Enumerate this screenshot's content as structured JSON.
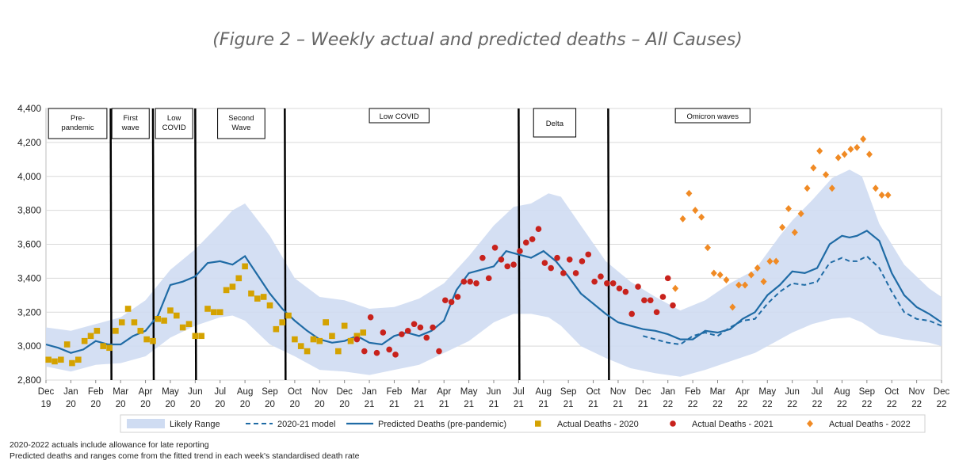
{
  "caption": "(Figure 2 – Weekly actual and predicted deaths – All Causes)",
  "footnotes": [
    "2020-2022 actuals include allowance for late reporting",
    "Predicted deaths and ranges come from the fitted trend in each week's standardised death rate"
  ],
  "colors": {
    "range": "#cfdcf2",
    "model": "#1f6ba5",
    "actual_2020": "#d4a200",
    "actual_2021": "#c8221c",
    "actual_2022": "#f08a24"
  },
  "chart_data": {
    "type": "line",
    "title": "",
    "ylim": [
      2800,
      4400
    ],
    "yticks": [
      2800,
      3000,
      3200,
      3400,
      3600,
      3800,
      4000,
      4200,
      4400
    ],
    "ytick_labels": [
      "2,800",
      "3,000",
      "3,200",
      "3,400",
      "3,600",
      "3,800",
      "4,000",
      "4,200",
      "4,400"
    ],
    "xlim": [
      0,
      36
    ],
    "x_unit": "months since Dec 2019",
    "xticks": [
      {
        "m": "Dec",
        "y": "19"
      },
      {
        "m": "Jan",
        "y": "20"
      },
      {
        "m": "Feb",
        "y": "20"
      },
      {
        "m": "Mar",
        "y": "20"
      },
      {
        "m": "Apr",
        "y": "20"
      },
      {
        "m": "May",
        "y": "20"
      },
      {
        "m": "Jun",
        "y": "20"
      },
      {
        "m": "Jul",
        "y": "20"
      },
      {
        "m": "Aug",
        "y": "20"
      },
      {
        "m": "Sep",
        "y": "20"
      },
      {
        "m": "Oct",
        "y": "20"
      },
      {
        "m": "Nov",
        "y": "20"
      },
      {
        "m": "Dec",
        "y": "20"
      },
      {
        "m": "Jan",
        "y": "21"
      },
      {
        "m": "Feb",
        "y": "21"
      },
      {
        "m": "Mar",
        "y": "21"
      },
      {
        "m": "Apr",
        "y": "21"
      },
      {
        "m": "May",
        "y": "21"
      },
      {
        "m": "Jun",
        "y": "21"
      },
      {
        "m": "Jul",
        "y": "21"
      },
      {
        "m": "Aug",
        "y": "21"
      },
      {
        "m": "Sep",
        "y": "21"
      },
      {
        "m": "Oct",
        "y": "21"
      },
      {
        "m": "Nov",
        "y": "21"
      },
      {
        "m": "Dec",
        "y": "21"
      },
      {
        "m": "Jan",
        "y": "22"
      },
      {
        "m": "Feb",
        "y": "22"
      },
      {
        "m": "Mar",
        "y": "22"
      },
      {
        "m": "Apr",
        "y": "22"
      },
      {
        "m": "May",
        "y": "22"
      },
      {
        "m": "Jun",
        "y": "22"
      },
      {
        "m": "Jul",
        "y": "22"
      },
      {
        "m": "Aug",
        "y": "22"
      },
      {
        "m": "Sep",
        "y": "22"
      },
      {
        "m": "Oct",
        "y": "22"
      },
      {
        "m": "Nov",
        "y": "22"
      },
      {
        "m": "Dec",
        "y": "22"
      }
    ],
    "grid": "horizontal",
    "legend_position": "bottom",
    "period_dividers": [
      2.6,
      4.3,
      6.0,
      9.6,
      19.0,
      22.6
    ],
    "periods": [
      {
        "label": [
          "Pre-",
          "pandemic"
        ],
        "from": 0.1,
        "to": 2.45
      },
      {
        "label": [
          "First",
          "wave"
        ],
        "from": 2.65,
        "to": 4.15
      },
      {
        "label": [
          "Low",
          "COVID"
        ],
        "from": 4.4,
        "to": 5.9
      },
      {
        "label": [
          "Second",
          "Wave"
        ],
        "from": 6.9,
        "to": 8.8
      },
      {
        "label": [
          "Low COVID"
        ],
        "from": 13.0,
        "to": 15.4
      },
      {
        "label": [
          "Delta"
        ],
        "from": 19.6,
        "to": 21.3
      },
      {
        "label": [
          "Omicron waves"
        ],
        "from": 25.3,
        "to": 28.3
      }
    ],
    "legend": [
      {
        "key": "range",
        "label": "Likely Range"
      },
      {
        "key": "model_2021",
        "label": "2020-21 model"
      },
      {
        "key": "predicted",
        "label": "Predicted Deaths (pre-pandemic)"
      },
      {
        "key": "actual_2020",
        "label": "Actual Deaths - 2020"
      },
      {
        "key": "actual_2021",
        "label": "Actual Deaths - 2021"
      },
      {
        "key": "actual_2022",
        "label": "Actual Deaths - 2022"
      }
    ],
    "series": [
      {
        "key": "range",
        "x": [
          0,
          1,
          2,
          3,
          4,
          5,
          6,
          7,
          7.5,
          8,
          9,
          10,
          11,
          12,
          13,
          14,
          15,
          16,
          17,
          18,
          18.8,
          19.5,
          20.2,
          20.7,
          21.5,
          22.5,
          23.5,
          24.5,
          25.5,
          26.5,
          27.5,
          28.5,
          29.5,
          30,
          30.8,
          31.6,
          32.3,
          32.8,
          33.5,
          34.5,
          35.5,
          36
        ],
        "upper": [
          3110,
          3090,
          3130,
          3170,
          3270,
          3450,
          3570,
          3720,
          3800,
          3840,
          3650,
          3400,
          3290,
          3270,
          3220,
          3230,
          3280,
          3370,
          3530,
          3710,
          3820,
          3840,
          3900,
          3880,
          3710,
          3500,
          3380,
          3290,
          3210,
          3270,
          3370,
          3450,
          3650,
          3740,
          3860,
          3990,
          4040,
          4000,
          3720,
          3480,
          3340,
          3290
        ],
        "lower": [
          2880,
          2850,
          2890,
          2900,
          2940,
          3050,
          3120,
          3170,
          3180,
          3150,
          3010,
          2940,
          2860,
          2850,
          2830,
          2860,
          2890,
          2960,
          3030,
          3140,
          3190,
          3190,
          3170,
          3120,
          3000,
          2930,
          2870,
          2840,
          2820,
          2860,
          2910,
          2960,
          3040,
          3080,
          3130,
          3160,
          3170,
          3140,
          3070,
          3040,
          3020,
          3000
        ]
      },
      {
        "key": "predicted",
        "name": "Predicted Deaths (pre-pandemic)",
        "x": [
          0,
          0.5,
          1,
          1.5,
          2,
          2.5,
          3,
          3.5,
          4,
          4.5,
          5,
          5.5,
          6,
          6.5,
          7,
          7.5,
          8,
          8.5,
          9,
          9.5,
          10,
          10.5,
          11,
          11.5,
          12,
          12.5,
          13,
          13.5,
          14,
          14.5,
          15,
          15.5,
          16,
          16.5,
          17,
          17.5,
          18,
          18.5,
          19,
          19.5,
          20,
          20.5,
          21,
          21.5,
          22,
          22.5,
          23,
          23.5,
          24,
          24.5,
          25,
          25.5,
          26,
          26.5,
          27,
          27.5,
          28,
          28.5,
          29,
          29.5,
          30,
          30.5,
          31,
          31.5,
          32,
          32.3,
          32.6,
          33,
          33.5,
          34,
          34.5,
          35,
          35.5,
          36
        ],
        "values": [
          3010,
          2990,
          2960,
          2980,
          3030,
          3010,
          3010,
          3060,
          3090,
          3180,
          3360,
          3380,
          3410,
          3490,
          3500,
          3480,
          3530,
          3420,
          3310,
          3220,
          3150,
          3090,
          3040,
          3020,
          3030,
          3060,
          3020,
          3010,
          3060,
          3080,
          3060,
          3090,
          3150,
          3330,
          3430,
          3450,
          3470,
          3560,
          3540,
          3520,
          3560,
          3500,
          3410,
          3310,
          3250,
          3190,
          3140,
          3120,
          3100,
          3090,
          3070,
          3040,
          3040,
          3090,
          3080,
          3100,
          3160,
          3200,
          3300,
          3360,
          3440,
          3430,
          3460,
          3600,
          3650,
          3640,
          3650,
          3680,
          3620,
          3430,
          3300,
          3230,
          3190,
          3140
        ]
      },
      {
        "key": "model_2021",
        "name": "2020-21 model",
        "x": [
          24,
          24.5,
          25,
          25.5,
          26,
          26.5,
          27,
          27.5,
          28,
          28.5,
          29,
          29.5,
          30,
          30.5,
          31,
          31.5,
          32,
          32.3,
          32.6,
          33,
          33.5,
          34,
          34.5,
          35,
          35.5,
          36
        ],
        "values": [
          3060,
          3040,
          3020,
          3010,
          3060,
          3080,
          3060,
          3110,
          3150,
          3160,
          3250,
          3320,
          3370,
          3360,
          3380,
          3490,
          3520,
          3500,
          3500,
          3530,
          3460,
          3320,
          3200,
          3160,
          3150,
          3120
        ]
      },
      {
        "key": "actual_2020",
        "name": "Actual Deaths - 2020",
        "marker": "square",
        "x": [
          0.1,
          0.35,
          0.6,
          0.85,
          1.05,
          1.3,
          1.55,
          1.8,
          2.05,
          2.3,
          2.55,
          2.8,
          3.05,
          3.3,
          3.55,
          3.8,
          4.05,
          4.3,
          4.5,
          4.75,
          5.0,
          5.25,
          5.5,
          5.75,
          6.0,
          6.25,
          6.5,
          6.75,
          7.0,
          7.25,
          7.5,
          7.75,
          8.0,
          8.25,
          8.5,
          8.75,
          9.0,
          9.25,
          9.5,
          9.75,
          10.0,
          10.25,
          10.5,
          10.75,
          11.0,
          11.25,
          11.5,
          11.75
        ],
        "values": [
          2920,
          2910,
          2920,
          3010,
          2900,
          2920,
          3030,
          3060,
          3090,
          3000,
          2990,
          3090,
          3140,
          3220,
          3140,
          3090,
          3040,
          3030,
          3160,
          3150,
          3210,
          3180,
          3110,
          3130,
          3060,
          3060,
          3220,
          3200,
          3200,
          3330,
          3350,
          3400,
          3470,
          3310,
          3280,
          3290,
          3240,
          3100,
          3140,
          3180,
          3040,
          3000,
          2970,
          3040,
          3030,
          3140,
          3060,
          2970
        ]
      },
      {
        "key": "actual_2020_b",
        "marker": "square",
        "x": [
          12.0,
          12.25,
          12.5,
          12.75,
          11.25
        ],
        "values": [
          3120,
          3030,
          3060,
          3080,
          3140
        ]
      },
      {
        "key": "actual_2021",
        "name": "Actual Deaths - 2021",
        "marker": "circle",
        "x": [
          12.5,
          12.8,
          13.05,
          13.3,
          13.55,
          13.8,
          14.05,
          14.3,
          14.55,
          14.8,
          15.05,
          15.3,
          15.55,
          15.8,
          16.05,
          16.3,
          16.55,
          16.8,
          17.05,
          17.3,
          17.55,
          17.8,
          18.05,
          18.3,
          18.55,
          18.8,
          19.05,
          19.3,
          19.55,
          19.8,
          20.05,
          20.3,
          20.55,
          20.8,
          21.05,
          21.3,
          21.55,
          21.8,
          22.05,
          22.3,
          22.55,
          22.8,
          23.05,
          23.3,
          23.55,
          23.8,
          24.05,
          24.3,
          24.55,
          24.8
        ],
        "values": [
          3040,
          2970,
          3170,
          2960,
          3080,
          2980,
          2950,
          3070,
          3090,
          3130,
          3110,
          3050,
          3110,
          2970,
          3270,
          3260,
          3290,
          3380,
          3380,
          3370,
          3520,
          3400,
          3580,
          3510,
          3470,
          3480,
          3560,
          3610,
          3630,
          3690,
          3490,
          3460,
          3520,
          3430,
          3510,
          3430,
          3500,
          3540,
          3380,
          3410,
          3370,
          3370,
          3340,
          3320,
          3190,
          3350,
          3270,
          3270,
          3200,
          3290
        ]
      },
      {
        "key": "actual_2021_b",
        "marker": "circle",
        "x": [
          25.0,
          25.2
        ],
        "values": [
          3400,
          3240
        ]
      },
      {
        "key": "actual_2022",
        "name": "Actual Deaths - 2022",
        "marker": "diamond",
        "x": [
          25.3,
          25.6,
          25.85,
          26.1,
          26.35,
          26.6,
          26.85,
          27.1,
          27.35,
          27.6,
          27.85,
          28.1,
          28.35,
          28.6,
          28.85,
          29.1,
          29.35,
          29.6,
          29.85,
          30.1,
          30.35,
          30.6,
          30.85,
          31.1,
          31.35,
          31.6,
          31.85,
          32.1,
          32.35,
          32.6,
          32.85,
          33.1,
          33.35,
          33.6,
          33.85
        ],
        "values": [
          3340,
          3750,
          3900,
          3800,
          3760,
          3580,
          3430,
          3420,
          3390,
          3230,
          3360,
          3360,
          3420,
          3460,
          3380,
          3500,
          3500,
          3700,
          3810,
          3670,
          3780,
          3930,
          4050,
          4150,
          4010,
          3930,
          4110,
          4130,
          4160,
          4170,
          4220,
          4130,
          3930,
          3890,
          3890
        ]
      }
    ]
  }
}
